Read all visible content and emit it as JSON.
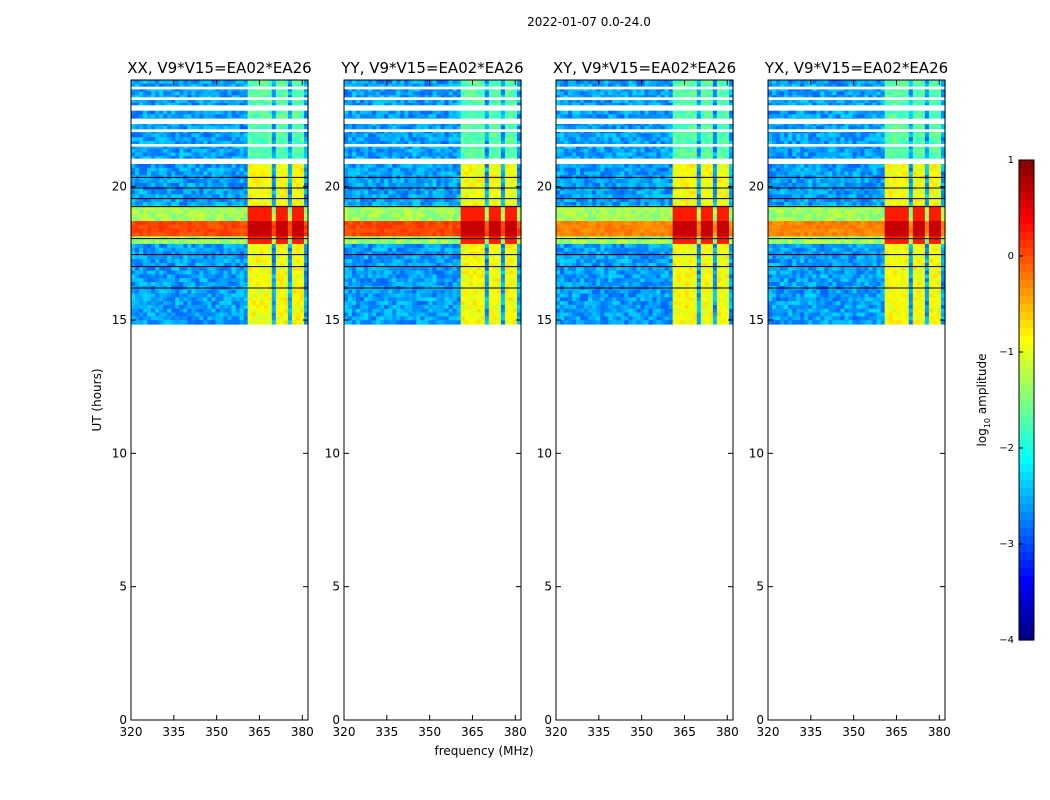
{
  "figure_title": "2022-01-07 0.0-24.0",
  "chart_data": {
    "type": "heatmap",
    "suptitle": "2022-01-07 0.0-24.0",
    "xlabel": "frequency (MHz)",
    "ylabel": "UT (hours)",
    "xlim": [
      320,
      382
    ],
    "ylim": [
      0,
      24
    ],
    "xticks": [
      320,
      335,
      350,
      365,
      380
    ],
    "yticks": [
      0,
      5,
      10,
      15,
      20
    ],
    "data_extent_ut": [
      14.85,
      24.0
    ],
    "panels": [
      {
        "title": "XX, V9*V15=EA02*EA26",
        "pol": "XX"
      },
      {
        "title": "YY, V9*V15=EA02*EA26",
        "pol": "YY"
      },
      {
        "title": "XY, V9*V15=EA02*EA26",
        "pol": "XY"
      },
      {
        "title": "YX, V9*V15=EA02*EA26",
        "pol": "YX"
      }
    ],
    "bright_channel_band_mhz": [
      360,
      380
    ],
    "strong_signal_ut": [
      17.8,
      19.3
    ],
    "colorbar": {
      "label": "log10 amplitude",
      "label_main": "log",
      "label_sub": "10",
      "label_rest": " amplitude",
      "range": [
        -4,
        1
      ],
      "ticks": [
        "1",
        "0",
        "−1",
        "−2",
        "−3",
        "−4"
      ],
      "ticks_values": [
        1,
        0,
        -1,
        -2,
        -3,
        -4
      ],
      "colormap": "jet"
    }
  },
  "colors": {
    "background_low": "#0a2dff",
    "flagged": "#ffffff"
  }
}
